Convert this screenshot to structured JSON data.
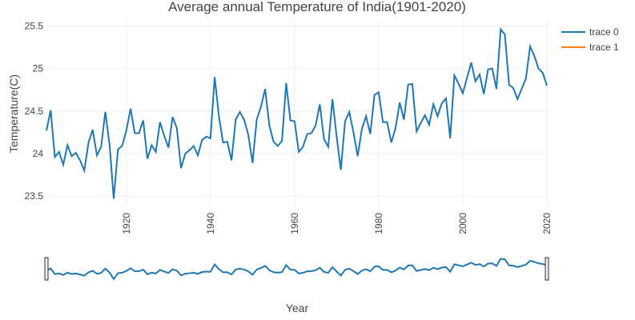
{
  "chart_data": {
    "type": "line",
    "title": "Average annual Temperature of India(1901-2020)",
    "x_label": "Year",
    "y_label": "Temperature(C)",
    "x": [
      1901,
      1902,
      1903,
      1904,
      1905,
      1906,
      1907,
      1908,
      1909,
      1910,
      1911,
      1912,
      1913,
      1914,
      1915,
      1916,
      1917,
      1918,
      1919,
      1920,
      1921,
      1922,
      1923,
      1924,
      1925,
      1926,
      1927,
      1928,
      1929,
      1930,
      1931,
      1932,
      1933,
      1934,
      1935,
      1936,
      1937,
      1938,
      1939,
      1940,
      1941,
      1942,
      1943,
      1944,
      1945,
      1946,
      1947,
      1948,
      1949,
      1950,
      1951,
      1952,
      1953,
      1954,
      1955,
      1956,
      1957,
      1958,
      1959,
      1960,
      1961,
      1962,
      1963,
      1964,
      1965,
      1966,
      1967,
      1968,
      1969,
      1970,
      1971,
      1972,
      1973,
      1974,
      1975,
      1976,
      1977,
      1978,
      1979,
      1980,
      1981,
      1982,
      1983,
      1984,
      1985,
      1986,
      1987,
      1988,
      1989,
      1990,
      1991,
      1992,
      1993,
      1994,
      1995,
      1996,
      1997,
      1998,
      1999,
      2000,
      2001,
      2002,
      2003,
      2004,
      2005,
      2006,
      2007,
      2008,
      2009,
      2010,
      2011,
      2012,
      2013,
      2014,
      2015,
      2016,
      2017,
      2018,
      2019,
      2020
    ],
    "series": [
      {
        "name": "trace 0",
        "color": "#1f77b4",
        "values": [
          24.27,
          24.51,
          23.96,
          24.02,
          23.87,
          24.1,
          23.97,
          24.01,
          23.92,
          23.8,
          24.13,
          24.28,
          23.98,
          24.08,
          24.49,
          24.11,
          23.47,
          24.05,
          24.09,
          24.27,
          24.53,
          24.24,
          24.24,
          24.39,
          23.94,
          24.1,
          24.02,
          24.37,
          24.21,
          24.07,
          24.43,
          24.3,
          23.83,
          24.0,
          24.04,
          24.09,
          23.98,
          24.16,
          24.2,
          24.18,
          24.9,
          24.44,
          24.13,
          24.14,
          23.92,
          24.4,
          24.49,
          24.4,
          24.22,
          23.89,
          24.4,
          24.55,
          24.76,
          24.33,
          24.14,
          24.09,
          24.15,
          24.83,
          24.39,
          24.38,
          24.02,
          24.08,
          24.23,
          24.24,
          24.33,
          24.58,
          24.17,
          24.08,
          24.64,
          24.2,
          23.81,
          24.38,
          24.49,
          24.25,
          23.97,
          24.29,
          24.44,
          24.23,
          24.69,
          24.72,
          24.37,
          24.37,
          24.13,
          24.3,
          24.6,
          24.4,
          24.81,
          24.82,
          24.26,
          24.36,
          24.45,
          24.34,
          24.58,
          24.44,
          24.59,
          24.65,
          24.18,
          24.92,
          24.82,
          24.71,
          24.89,
          25.07,
          24.85,
          24.93,
          24.7,
          24.99,
          25.0,
          24.76,
          25.46,
          25.4,
          24.81,
          24.77,
          24.64,
          24.76,
          24.88,
          25.26,
          25.15,
          25.0,
          24.95,
          24.8
        ]
      },
      {
        "name": "trace 1",
        "color": "#ff7f0e",
        "values": [
          null,
          null,
          null,
          null,
          null,
          null,
          null,
          null,
          null,
          null,
          null,
          null,
          null,
          null,
          null,
          null,
          null,
          null,
          null,
          null,
          null,
          null,
          null,
          null,
          null,
          null,
          null,
          null,
          null,
          null,
          null,
          null,
          null,
          null,
          null,
          null,
          null,
          null,
          null,
          null,
          null,
          null,
          null,
          null,
          null,
          null,
          null,
          null,
          null,
          null,
          null,
          null,
          null,
          null,
          null,
          null,
          null,
          null,
          null,
          null,
          null,
          null,
          null,
          null,
          null,
          null,
          null,
          null,
          null,
          null,
          null,
          null,
          null,
          null,
          null,
          null,
          null,
          null,
          null,
          null,
          null,
          null,
          null,
          null,
          null,
          null,
          null,
          null,
          null,
          null,
          null,
          null,
          null,
          null,
          null,
          null,
          null,
          null,
          null,
          null,
          null,
          null,
          null,
          null,
          null,
          null,
          null,
          null,
          null,
          null,
          null,
          null,
          null,
          null,
          null,
          null,
          null,
          null,
          null,
          null
        ]
      }
    ],
    "xlim": [
      1901,
      2020
    ],
    "ylim": [
      23.38,
      25.57
    ],
    "xticks": [
      1920,
      1940,
      1960,
      1980,
      2000,
      2020
    ],
    "yticks": [
      23.5,
      24,
      24.5,
      25,
      25.5
    ],
    "grid": true,
    "legend": "top-right",
    "range_slider": true
  }
}
